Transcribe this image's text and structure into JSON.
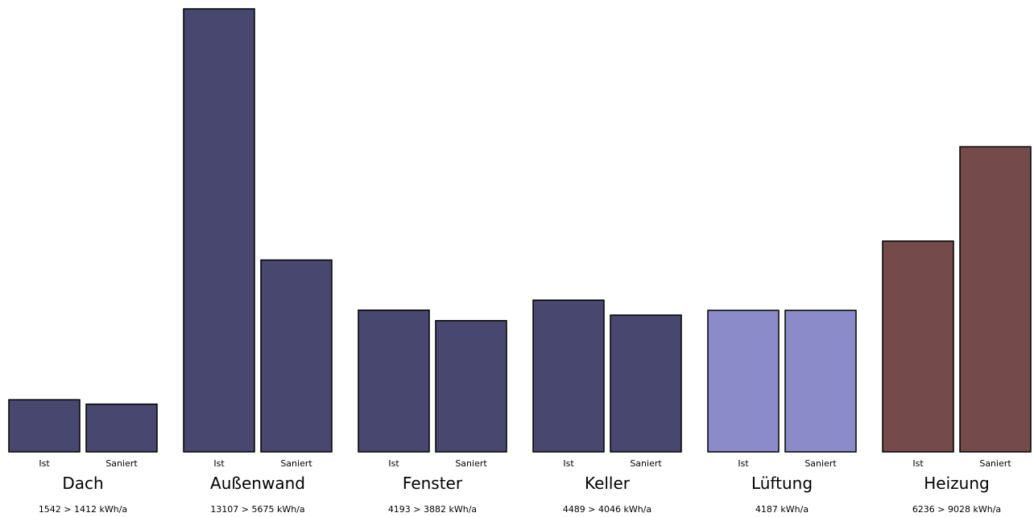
{
  "chart_data": {
    "type": "bar",
    "unit": "kWh/a",
    "series_labels": [
      "Ist",
      "Saniert"
    ],
    "ylim": [
      0,
      13107
    ],
    "groups": [
      {
        "name": "Dach",
        "values": [
          1542,
          1412
        ],
        "summary": "1542 > 1412 kWh/a",
        "color": "#48476f"
      },
      {
        "name": "Außenwand",
        "values": [
          13107,
          5675
        ],
        "summary": "13107 > 5675 kWh/a",
        "color": "#48476f"
      },
      {
        "name": "Fenster",
        "values": [
          4193,
          3882
        ],
        "summary": "4193 > 3882 kWh/a",
        "color": "#48476f"
      },
      {
        "name": "Keller",
        "values": [
          4489,
          4046
        ],
        "summary": "4489 > 4046 kWh/a",
        "color": "#48476f"
      },
      {
        "name": "Lüftung",
        "values": [
          4187,
          4187
        ],
        "summary": "4187 kWh/a",
        "color": "#8b8bc9"
      },
      {
        "name": "Heizung",
        "values": [
          6236,
          9028
        ],
        "summary": "6236 > 9028 kWh/a",
        "color": "#754a4a"
      }
    ]
  }
}
